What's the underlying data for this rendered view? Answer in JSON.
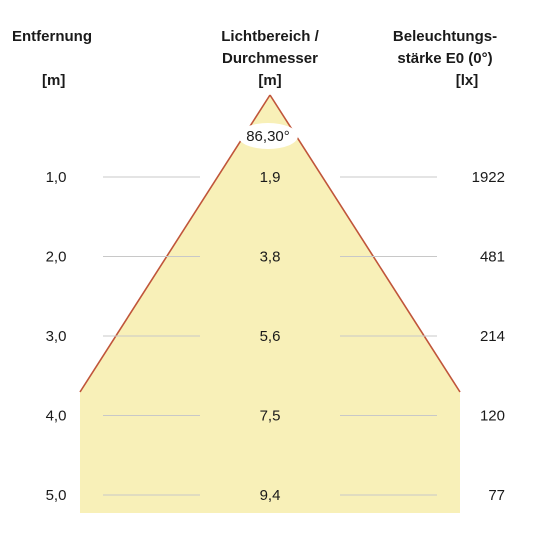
{
  "headers": {
    "distance": "Entfernung",
    "distance_unit": "[m]",
    "light_area_line1": "Lichtbereich /",
    "light_area_line2": "Durchmesser",
    "light_area_unit": "[m]",
    "illuminance_line1": "Beleuchtungs-",
    "illuminance_line2": "stärke E0 (0°)",
    "illuminance_unit": "[lx]"
  },
  "beam_angle": "86,30°",
  "colors": {
    "cone_fill": "#f8f0b8",
    "cone_edge": "#c0553a",
    "grid_line": "#c8c8c8",
    "angle_badge": "#ffffff"
  },
  "rows": [
    {
      "distance": "1,0",
      "diameter": "1,9",
      "illuminance": "1922"
    },
    {
      "distance": "2,0",
      "diameter": "3,8",
      "illuminance": "481"
    },
    {
      "distance": "3,0",
      "diameter": "5,6",
      "illuminance": "214"
    },
    {
      "distance": "4,0",
      "diameter": "7,5",
      "illuminance": "120"
    },
    {
      "distance": "5,0",
      "diameter": "9,4",
      "illuminance": "77"
    }
  ]
}
